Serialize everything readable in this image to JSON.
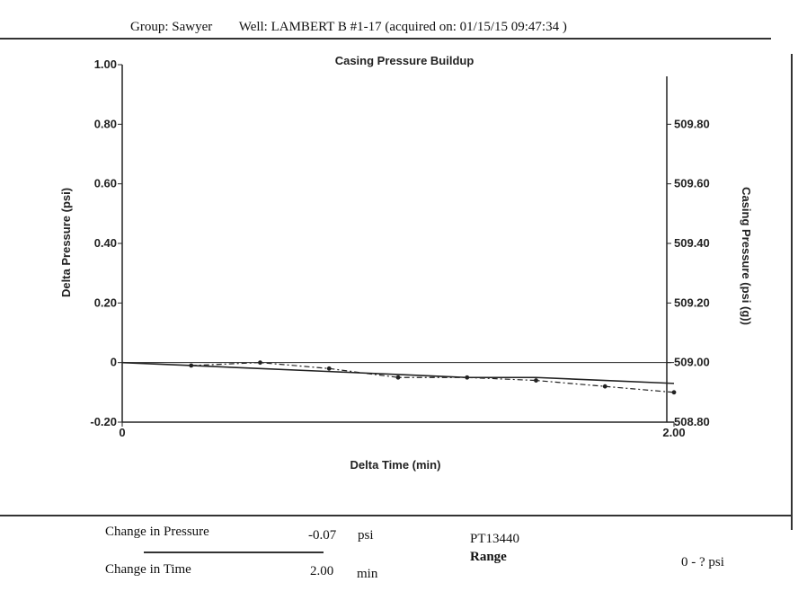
{
  "header": {
    "group": "Group: Sawyer",
    "well": "Well: LAMBERT B #1-17 (acquired on: 01/15/15 09:47:34 )"
  },
  "footer": {
    "change_pressure_label": "Change in Pressure",
    "change_pressure_value": "-0.07",
    "change_pressure_unit": "psi",
    "change_time_label": "Change in Time",
    "change_time_value": "2.00",
    "change_time_unit": "min",
    "gauge_id": "PT13440",
    "range_label": "Range",
    "range_value": "0 - ?  psi"
  },
  "chart_data": {
    "type": "line",
    "title": "Casing Pressure Buildup",
    "xlabel": "Delta Time (min)",
    "ylabel": "Delta Pressure (psi)",
    "y2label": "Casing Pressure (psi (g))",
    "xlim": [
      0,
      2.0
    ],
    "ylim": [
      -0.2,
      1.0
    ],
    "y2lim": [
      508.8,
      510.0
    ],
    "x_ticks": [
      "0",
      "2.00"
    ],
    "y_ticks": [
      "-0.20",
      "0",
      "0.20",
      "0.40",
      "0.60",
      "0.80",
      "1.00"
    ],
    "y2_ticks": [
      "508.80",
      "509.00",
      "509.20",
      "509.40",
      "509.60",
      "509.80"
    ],
    "series": [
      {
        "style": "solid",
        "x": [
          0,
          0.25,
          0.5,
          0.75,
          1.0,
          1.25,
          1.5,
          1.75,
          2.0
        ],
        "y": [
          0.0,
          -0.01,
          -0.02,
          -0.03,
          -0.04,
          -0.05,
          -0.05,
          -0.06,
          -0.07
        ]
      },
      {
        "style": "dashdot",
        "x": [
          0.25,
          0.5,
          0.75,
          1.0,
          1.25,
          1.5,
          1.75,
          2.0
        ],
        "y": [
          -0.01,
          0.0,
          -0.02,
          -0.05,
          -0.05,
          -0.06,
          -0.08,
          -0.1
        ]
      }
    ],
    "grid": false
  }
}
